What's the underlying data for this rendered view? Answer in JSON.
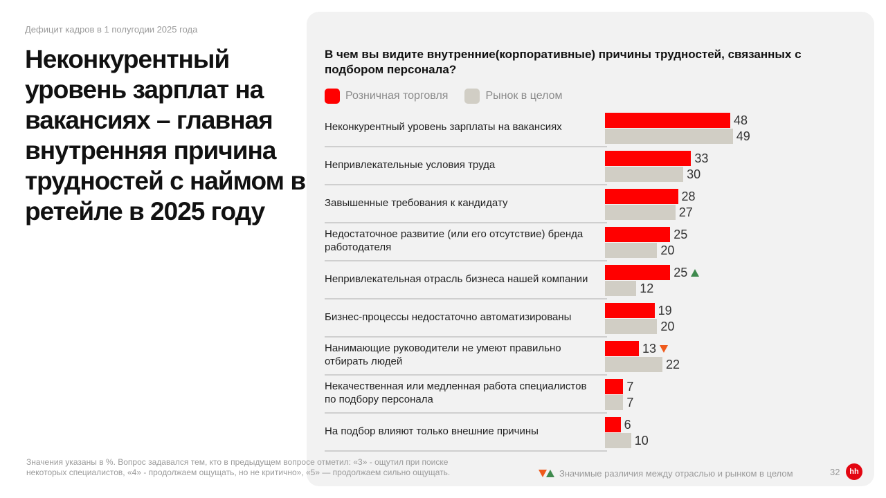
{
  "kicker": "Дефицит кадров в 1 полугодии 2025 года",
  "title": "Неконкурентный уровень зарплат на вакансиях – главная внутренняя причина трудностей с наймом в ретейле в 2025 году",
  "chart_data": {
    "type": "bar",
    "orientation": "horizontal",
    "title": "В чем вы видите внутренние(корпоративные) причины трудностей, связанных с подбором персонала?",
    "legend_placement": "top-left",
    "categories": [
      "Неконкурентный уровень зарплаты на вакансиях",
      "Непривлекательные условия труда",
      "Завышенные требования к кандидату",
      "Недостаточное развитие (или его отсутствие) бренда работодателя",
      "Непривлекательная отрасль бизнеса нашей компании",
      "Бизнес-процессы недостаточно автоматизированы",
      "Нанимающие руководители не умеют правильно отбирать людей",
      "Некачественная или медленная работа специалистов по подбору персонала",
      "На подбор влияют только внешние причины"
    ],
    "series": [
      {
        "name": "Розничная торговля",
        "color": "#ff0000",
        "values": [
          48,
          33,
          28,
          25,
          25,
          19,
          13,
          7,
          6
        ]
      },
      {
        "name": "Рынок в целом",
        "color": "#d1cec5",
        "values": [
          49,
          30,
          27,
          20,
          12,
          20,
          22,
          7,
          10
        ]
      }
    ],
    "significance": [
      null,
      null,
      null,
      null,
      "up",
      null,
      "down",
      null,
      null
    ],
    "significance_colors": {
      "up": "#3f8a4e",
      "down": "#ef5a1c"
    },
    "grid": false
  },
  "footnote": "Значения указаны в %. Вопрос задавался тем, кто в предыдущем вопросе отметил: «3» - ощутил при поиске некоторых специалистов, «4» - продолжаем ощущать, но не критично», «5» — продолжаем сильно ощущать.",
  "sig_note": "Значимые различия между отраслью и рынком в целом",
  "page_number": "32",
  "logo": "hh"
}
